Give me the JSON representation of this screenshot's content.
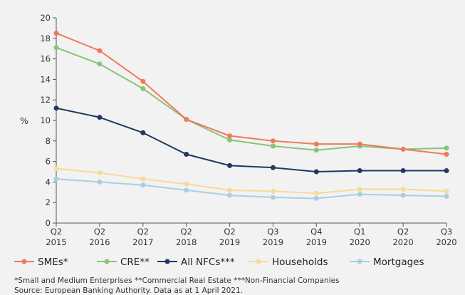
{
  "chart_data": {
    "type": "line",
    "categories": [
      [
        "Q2",
        "2015"
      ],
      [
        "Q2",
        "2016"
      ],
      [
        "Q2",
        "2017"
      ],
      [
        "Q2",
        "2018"
      ],
      [
        "Q2",
        "2019"
      ],
      [
        "Q3",
        "2019"
      ],
      [
        "Q4",
        "2019"
      ],
      [
        "Q1",
        "2020"
      ],
      [
        "Q2",
        "2020"
      ],
      [
        "Q3",
        "2020"
      ]
    ],
    "ylabel": "%",
    "ylim": [
      0,
      20
    ],
    "yticks": [
      0,
      2,
      4,
      6,
      8,
      10,
      12,
      14,
      16,
      18,
      20
    ],
    "grid": false,
    "legend_position": "bottom",
    "series": [
      {
        "name": "SMEs*",
        "color": "#f07a5a",
        "values": [
          18.5,
          16.8,
          13.8,
          10.1,
          8.5,
          8.0,
          7.7,
          7.7,
          7.2,
          6.7
        ]
      },
      {
        "name": "CRE**",
        "color": "#86c47a",
        "values": [
          17.1,
          15.5,
          13.1,
          10.1,
          8.1,
          7.5,
          7.1,
          7.5,
          7.2,
          7.3
        ]
      },
      {
        "name": "All NFCs***",
        "color": "#1e3a5f",
        "values": [
          11.2,
          10.3,
          8.8,
          6.7,
          5.6,
          5.4,
          5.0,
          5.1,
          5.1,
          5.1
        ]
      },
      {
        "name": "Households",
        "color": "#f7d99a",
        "values": [
          5.3,
          4.9,
          4.3,
          3.8,
          3.2,
          3.1,
          2.9,
          3.3,
          3.3,
          3.1
        ]
      },
      {
        "name": "Mortgages",
        "color": "#a8cfe0",
        "values": [
          4.3,
          4.0,
          3.7,
          3.2,
          2.7,
          2.5,
          2.4,
          2.8,
          2.7,
          2.6
        ]
      }
    ]
  },
  "footnotes": {
    "line1": "*Small and Medium Enterprises **Commercial Real Estate ***Non-Financial Companies",
    "line2": "Source: European Banking Authority. Data as at 1 April 2021."
  }
}
